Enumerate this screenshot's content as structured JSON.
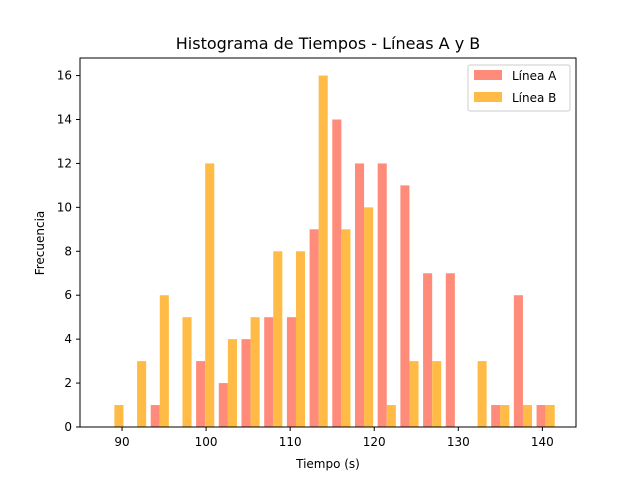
{
  "chart_data": {
    "type": "bar",
    "title": "Histograma de Tiempos - Líneas A y B",
    "xlabel": "Tiempo (s)",
    "ylabel": "Frecuencia",
    "xlim": [
      85,
      144
    ],
    "ylim": [
      0,
      16.8
    ],
    "xticks": [
      90,
      100,
      110,
      120,
      130,
      140
    ],
    "yticks": [
      0,
      2,
      4,
      6,
      8,
      10,
      12,
      14,
      16
    ],
    "grid": false,
    "legend_position": "top-right",
    "bin_start": 87.74,
    "bin_width": 2.7,
    "series": [
      {
        "name": "Línea A",
        "color": "#ff8c7a",
        "counts": [
          0,
          0,
          1,
          0,
          3,
          2,
          4,
          5,
          5,
          9,
          14,
          12,
          12,
          11,
          7,
          7,
          0,
          1,
          6,
          1,
          0
        ]
      },
      {
        "name": "Línea B",
        "color": "#ffbb45",
        "counts": [
          1,
          3,
          6,
          5,
          12,
          4,
          5,
          8,
          8,
          16,
          9,
          10,
          1,
          3,
          3,
          0,
          3,
          1,
          1,
          1,
          0
        ]
      }
    ]
  }
}
